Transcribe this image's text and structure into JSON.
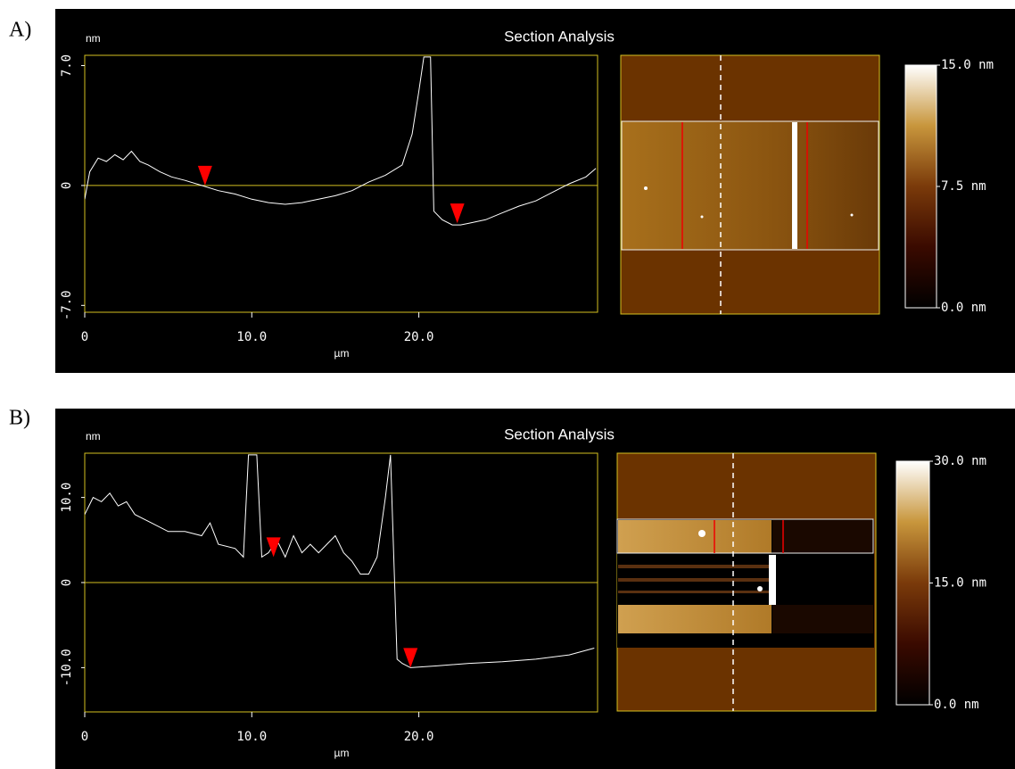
{
  "chart_data": [
    {
      "type": "line",
      "panel_label": "A)",
      "title": "Section Analysis",
      "y_label": "nm",
      "x_label": "µm",
      "x": [
        0,
        0.3,
        0.8,
        1.3,
        1.8,
        2.3,
        2.8,
        3.3,
        3.8,
        4.5,
        5.2,
        6,
        7,
        8,
        9,
        10,
        11,
        12,
        13,
        14,
        15,
        16,
        17,
        18,
        19,
        19.6,
        20,
        20.3,
        20.7,
        20.9,
        21.4,
        22,
        22.5,
        23,
        23.5,
        24,
        25,
        26,
        27,
        28,
        29,
        30,
        30.6
      ],
      "series": [
        {
          "color": "#ffffff",
          "values": [
            -0.8,
            0.8,
            1.6,
            1.4,
            1.8,
            1.5,
            2.0,
            1.4,
            1.2,
            0.8,
            0.5,
            0.3,
            0.0,
            -0.3,
            -0.5,
            -0.8,
            -1.0,
            -1.1,
            -1.0,
            -0.8,
            -0.6,
            -0.3,
            0.2,
            0.6,
            1.2,
            3.0,
            5.5,
            7.5,
            7.5,
            -1.5,
            -2.0,
            -2.3,
            -2.3,
            -2.2,
            -2.1,
            -2.0,
            -1.6,
            -1.2,
            -0.9,
            -0.4,
            0.1,
            0.5,
            1.0
          ]
        }
      ],
      "xlim": [
        0,
        30.7
      ],
      "xticks": [
        0,
        {
          "value": 10,
          "label": "10.0"
        },
        {
          "value": 20,
          "label": "20.0"
        }
      ],
      "ylim": [
        -7.4,
        7.6
      ],
      "yticks": [
        {
          "value": -7,
          "label": "-7.0"
        },
        0,
        {
          "value": 7,
          "label": "7.0"
        }
      ],
      "reference_line": 0,
      "markers": [
        {
          "x": 7.2,
          "y": 0.0
        },
        {
          "x": 22.3,
          "y": -2.2
        }
      ],
      "colorbar": {
        "lim": [
          0,
          15
        ],
        "ticks": [
          {
            "value": 15,
            "label": "15.0 nm"
          },
          {
            "value": 7.5,
            "label": "7.5 nm"
          },
          {
            "value": 0,
            "label": "0.0 nm"
          }
        ]
      }
    },
    {
      "type": "line",
      "panel_label": "B)",
      "title": "Section Analysis",
      "y_label": "nm",
      "x_label": "µm",
      "x": [
        0,
        0.5,
        1,
        1.5,
        2,
        2.5,
        3,
        4,
        5,
        6,
        7,
        7.5,
        8,
        9,
        9.5,
        9.8,
        10,
        10.3,
        10.6,
        11,
        11.5,
        12,
        12.5,
        13,
        13.5,
        14,
        15,
        15.5,
        16,
        16.5,
        17,
        17.5,
        18,
        18.3,
        18.7,
        19,
        19.5,
        21,
        23,
        25,
        27,
        29,
        30.5
      ],
      "series": [
        {
          "color": "#ffffff",
          "values": [
            8,
            10,
            9.5,
            10.5,
            9,
            9.5,
            8,
            7,
            6,
            6,
            5.5,
            7,
            4.5,
            4,
            3,
            15,
            15,
            15,
            3,
            3.5,
            5,
            3,
            5.5,
            3.5,
            4.5,
            3.5,
            5.5,
            3.5,
            2.5,
            1,
            1,
            3,
            10,
            15,
            -9,
            -9.5,
            -10,
            -9.8,
            -9.5,
            -9.3,
            -9,
            -8.5,
            -7.7
          ]
        }
      ],
      "xlim": [
        0,
        30.7
      ],
      "xticks": [
        0,
        {
          "value": 10,
          "label": "10.0"
        },
        {
          "value": 20,
          "label": "20.0"
        }
      ],
      "ylim": [
        -15.2,
        15.2
      ],
      "yticks": [
        {
          "value": -10,
          "label": "-10.0"
        },
        0,
        {
          "value": 10,
          "label": "10.0"
        }
      ],
      "reference_line": 0,
      "markers": [
        {
          "x": 11.3,
          "y": 3.0
        },
        {
          "x": 19.5,
          "y": -10.0
        }
      ],
      "colorbar": {
        "lim": [
          0,
          30
        ],
        "ticks": [
          {
            "value": 30,
            "label": "30.0 nm"
          },
          {
            "value": 15,
            "label": "15.0 nm"
          },
          {
            "value": 0,
            "label": "0.0 nm"
          }
        ]
      }
    }
  ]
}
